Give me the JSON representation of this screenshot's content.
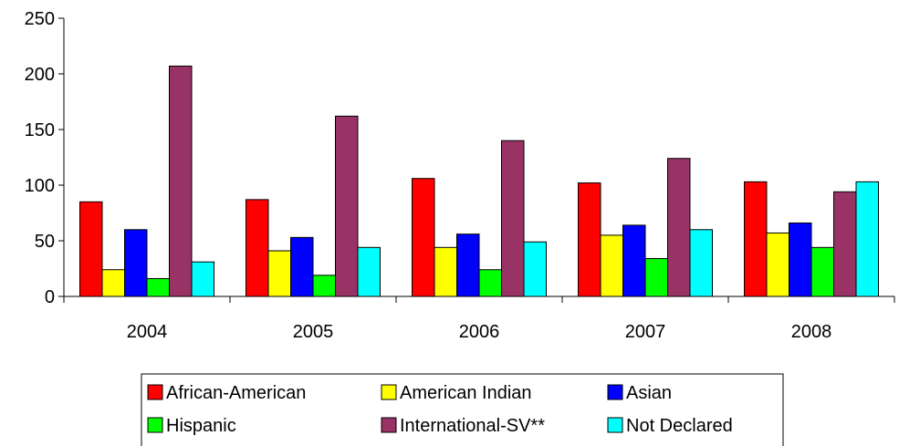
{
  "chart_data": {
    "type": "bar",
    "categories": [
      "2004",
      "2005",
      "2006",
      "2007",
      "2008"
    ],
    "series": [
      {
        "name": "African-American",
        "color": "#ff0000",
        "values": [
          85,
          87,
          106,
          102,
          103
        ]
      },
      {
        "name": "American Indian",
        "color": "#ffff00",
        "values": [
          24,
          41,
          44,
          55,
          57
        ]
      },
      {
        "name": "Asian",
        "color": "#0000ff",
        "values": [
          60,
          53,
          56,
          64,
          66
        ]
      },
      {
        "name": "Hispanic",
        "color": "#00ff00",
        "values": [
          16,
          19,
          24,
          34,
          44
        ]
      },
      {
        "name": "International-SV**",
        "color": "#993366",
        "values": [
          207,
          162,
          140,
          124,
          94
        ]
      },
      {
        "name": "Not Declared",
        "color": "#00ffff",
        "values": [
          31,
          44,
          49,
          60,
          103
        ]
      }
    ],
    "yticks": [
      "0",
      "50",
      "100",
      "150",
      "200",
      "250"
    ],
    "ylim": [
      0,
      250
    ],
    "grid": false,
    "legend_position": "bottom",
    "title": "",
    "xlabel": "",
    "ylabel": ""
  }
}
